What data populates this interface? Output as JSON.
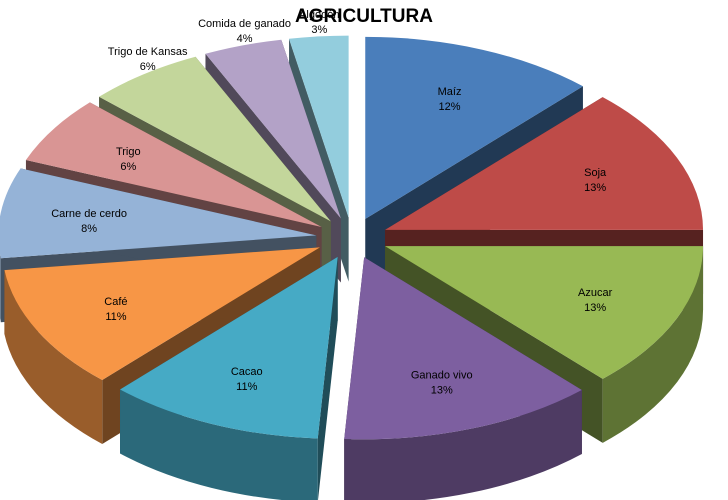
{
  "chart_data": {
    "type": "pie",
    "title": "AGRICULTURA",
    "slices": [
      {
        "name": "Maíz",
        "label": "12%",
        "value": 12,
        "color": "#4A7EBB"
      },
      {
        "name": "Soja",
        "label": "13%",
        "value": 13,
        "color": "#BE4B48"
      },
      {
        "name": "Azucar",
        "label": "13%",
        "value": 13,
        "color": "#98B954"
      },
      {
        "name": "Ganado vivo",
        "label": "13%",
        "value": 13,
        "color": "#7D5FA0"
      },
      {
        "name": "Cacao",
        "label": "11%",
        "value": 11,
        "color": "#46AAC5"
      },
      {
        "name": "Café",
        "label": "11%",
        "value": 11,
        "color": "#F79646"
      },
      {
        "name": "Carne de cerdo",
        "label": "8%",
        "value": 8,
        "color": "#95B3D7"
      },
      {
        "name": "Trigo",
        "label": "6%",
        "value": 6,
        "color": "#D99594"
      },
      {
        "name": "Trigo de Kansas",
        "label": "6%",
        "value": 6,
        "color": "#C3D69B"
      },
      {
        "name": "Comida de ganado",
        "label": "4%",
        "value": 4,
        "color": "#B3A2C7"
      },
      {
        "name": "Algodón",
        "label": "3%",
        "value": 3,
        "color": "#93CDDD"
      }
    ],
    "legend": "none",
    "grid": false,
    "style": "3d-exploded-pie"
  }
}
